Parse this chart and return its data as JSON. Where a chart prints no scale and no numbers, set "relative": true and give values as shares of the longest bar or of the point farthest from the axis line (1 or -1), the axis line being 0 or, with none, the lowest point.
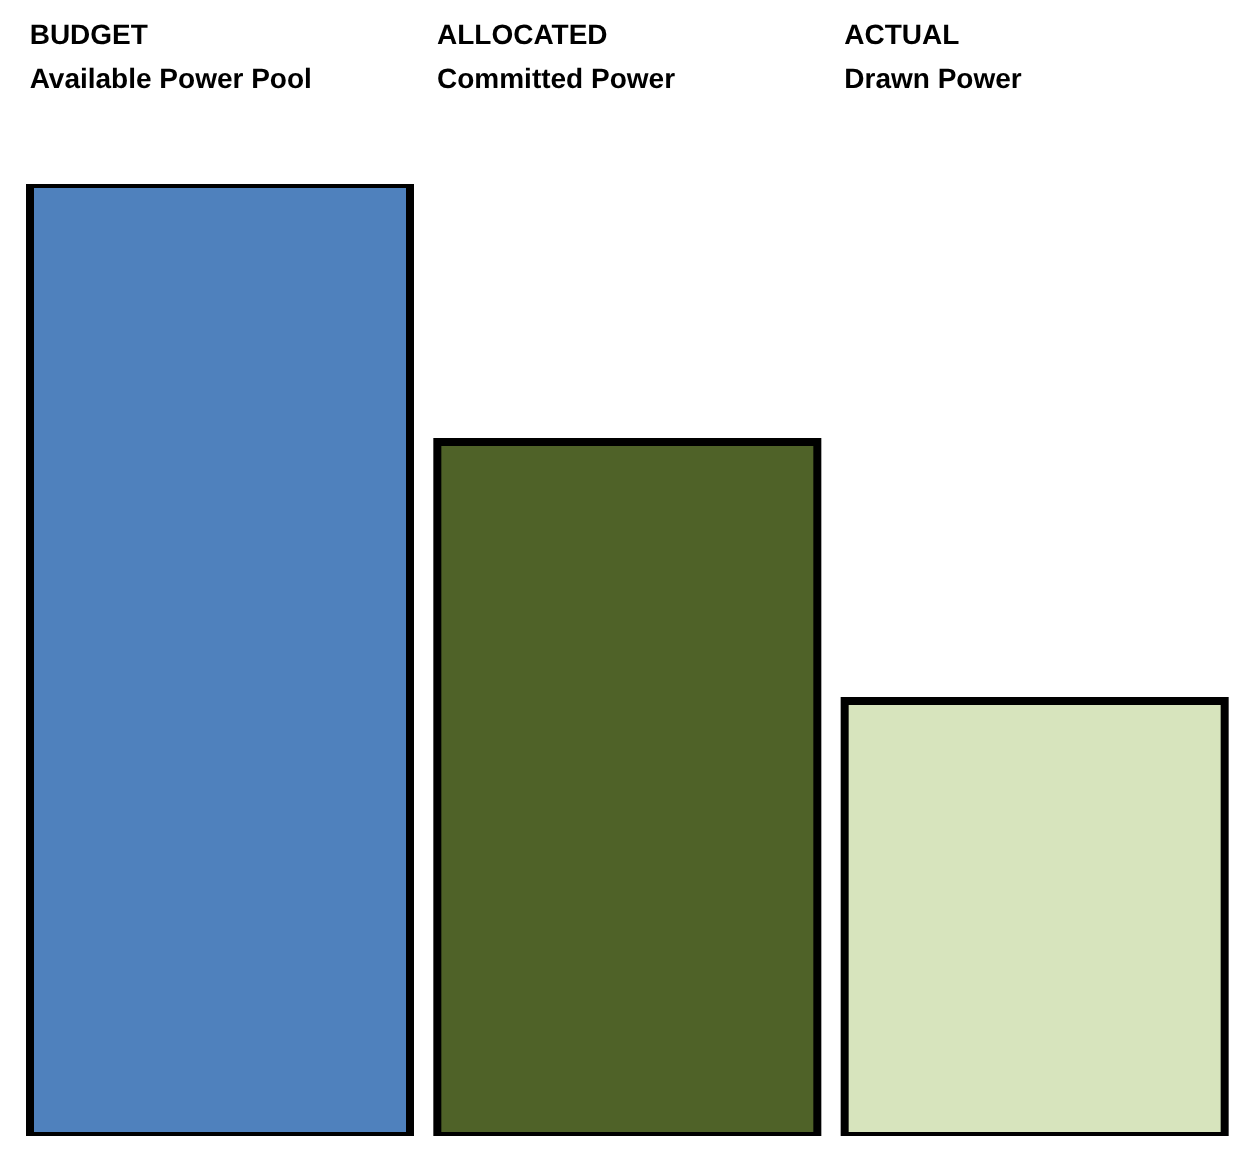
{
  "chart_data": {
    "type": "bar",
    "relative": true,
    "categories": [
      "BUDGET\nAvailable Power Pool",
      "ALLOCATED\nCommitted Power",
      "ACTUAL\nDrawn Power"
    ],
    "values": [
      1,
      0.729,
      0.457
    ],
    "colors": [
      "#4f81bd",
      "#4f6228",
      "#d7e4bd"
    ]
  }
}
